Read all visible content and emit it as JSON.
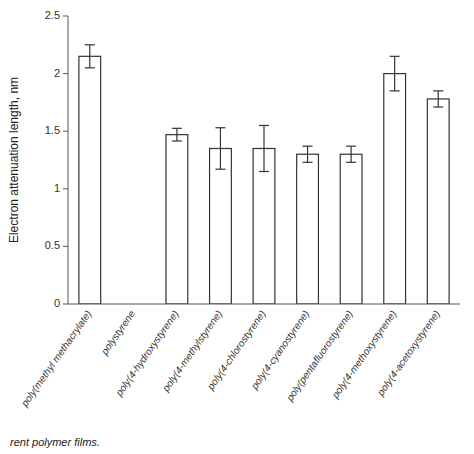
{
  "chart_data": {
    "type": "bar",
    "categories": [
      "poly(methyl methacrylate)",
      "polystyrene",
      "poly(4-hydroxystyrene)",
      "poly(4-methylstyrene)",
      "poly(4-chlorostyrene)",
      "poly(4-cyanostyrene)",
      "poly(pentafluorostyrene)",
      "poly(4-methoxystyrene)",
      "poly(4-acetoxystyrene)"
    ],
    "values": [
      2.15,
      null,
      1.47,
      1.35,
      1.35,
      1.3,
      1.3,
      2.0,
      1.78
    ],
    "errors": [
      0.1,
      null,
      0.055,
      0.18,
      0.2,
      0.07,
      0.07,
      0.15,
      0.07
    ],
    "ylabel": "Electron attenuation length, nm",
    "ylim": [
      0.0,
      2.5
    ],
    "yticks": [
      0.0,
      0.5,
      1.0,
      1.5,
      2.0,
      2.5
    ],
    "color": "#ffffff",
    "grid": false,
    "caption": "rent polymer films."
  }
}
